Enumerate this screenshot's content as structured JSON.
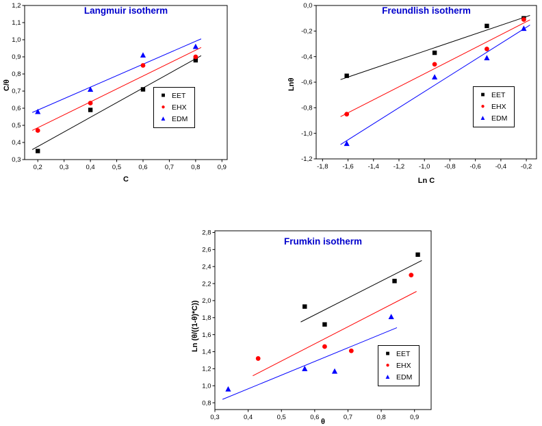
{
  "legend_labels": [
    "EET",
    "EHX",
    "EDM"
  ],
  "accent_colors": {
    "title_blue": "#0000cc",
    "series_black": "#000000",
    "series_red": "#ff0000",
    "series_blue": "#0000ff"
  },
  "chart_data": [
    {
      "type": "scatter",
      "id": "langmuir",
      "title": "Langmuir isotherm",
      "title_color": "#0000cc",
      "xlabel": "C",
      "ylabel": "C/θ",
      "xlim": [
        0.15,
        0.92
      ],
      "ylim": [
        0.3,
        1.2
      ],
      "xticks": [
        0.2,
        0.3,
        0.4,
        0.5,
        0.6,
        0.7,
        0.8,
        0.9
      ],
      "yticks": [
        0.3,
        0.4,
        0.5,
        0.6,
        0.7,
        0.8,
        0.9,
        1.0,
        1.1,
        1.2
      ],
      "decimal_separator": ",",
      "grid": false,
      "legend_position": "inside-right-center",
      "series": [
        {
          "name": "EET",
          "marker": "square",
          "color": "#000000",
          "fit_line": true,
          "x": [
            0.2,
            0.4,
            0.6,
            0.8
          ],
          "y": [
            0.35,
            0.59,
            0.71,
            0.88
          ]
        },
        {
          "name": "EHX",
          "marker": "circle",
          "color": "#ff0000",
          "fit_line": true,
          "x": [
            0.2,
            0.4,
            0.6,
            0.8
          ],
          "y": [
            0.47,
            0.63,
            0.85,
            0.9
          ]
        },
        {
          "name": "EDM",
          "marker": "triangle",
          "color": "#0000ff",
          "fit_line": true,
          "x": [
            0.2,
            0.4,
            0.6,
            0.8
          ],
          "y": [
            0.58,
            0.71,
            0.91,
            0.96
          ]
        }
      ]
    },
    {
      "type": "scatter",
      "id": "freundlish",
      "title": "Freundlish isotherm",
      "title_color": "#0000cc",
      "xlabel": "Ln C",
      "ylabel": "Lnθ",
      "xlim": [
        -1.85,
        -0.12
      ],
      "ylim": [
        -1.2,
        0.0
      ],
      "xticks": [
        -1.8,
        -1.6,
        -1.4,
        -1.2,
        -1.0,
        -0.8,
        -0.6,
        -0.4,
        -0.2
      ],
      "yticks": [
        0.0,
        -0.2,
        -0.4,
        -0.6,
        -0.8,
        -1.0,
        -1.2
      ],
      "decimal_separator": ",",
      "grid": false,
      "legend_position": "inside-right-center",
      "series": [
        {
          "name": "EET",
          "marker": "square",
          "color": "#000000",
          "fit_line": true,
          "x": [
            -1.61,
            -0.92,
            -0.51,
            -0.22
          ],
          "y": [
            -0.55,
            -0.37,
            -0.16,
            -0.1
          ]
        },
        {
          "name": "EHX",
          "marker": "circle",
          "color": "#ff0000",
          "fit_line": true,
          "x": [
            -1.61,
            -0.92,
            -0.51,
            -0.22
          ],
          "y": [
            -0.85,
            -0.46,
            -0.34,
            -0.11
          ]
        },
        {
          "name": "EDM",
          "marker": "triangle",
          "color": "#0000ff",
          "fit_line": true,
          "x": [
            -1.61,
            -0.92,
            -0.51,
            -0.22
          ],
          "y": [
            -1.08,
            -0.56,
            -0.41,
            -0.18
          ]
        }
      ]
    },
    {
      "type": "scatter",
      "id": "frumkin",
      "title": "Frumkin isotherm",
      "title_color": "#0000cc",
      "xlabel": "θ",
      "ylabel": "Ln (θ/((1-θ)*C))",
      "xlim": [
        0.3,
        0.95
      ],
      "ylim": [
        0.72,
        2.82
      ],
      "xticks": [
        0.3,
        0.4,
        0.5,
        0.6,
        0.7,
        0.8,
        0.9
      ],
      "yticks": [
        0.8,
        1.0,
        1.2,
        1.4,
        1.6,
        1.8,
        2.0,
        2.2,
        2.4,
        2.6,
        2.8
      ],
      "decimal_separator": ",",
      "grid": false,
      "legend_position": "inside-bottom-right",
      "series": [
        {
          "name": "EET",
          "marker": "square",
          "color": "#000000",
          "fit_line": true,
          "x": [
            0.57,
            0.63,
            0.84,
            0.91
          ],
          "y": [
            1.93,
            1.72,
            2.23,
            2.54
          ]
        },
        {
          "name": "EHX",
          "marker": "circle",
          "color": "#ff0000",
          "fit_line": true,
          "x": [
            0.43,
            0.63,
            0.71,
            0.89
          ],
          "y": [
            1.32,
            1.46,
            1.41,
            2.3
          ]
        },
        {
          "name": "EDM",
          "marker": "triangle",
          "color": "#0000ff",
          "fit_line": true,
          "x": [
            0.34,
            0.57,
            0.66,
            0.83
          ],
          "y": [
            0.96,
            1.2,
            1.17,
            1.81
          ]
        }
      ]
    }
  ]
}
